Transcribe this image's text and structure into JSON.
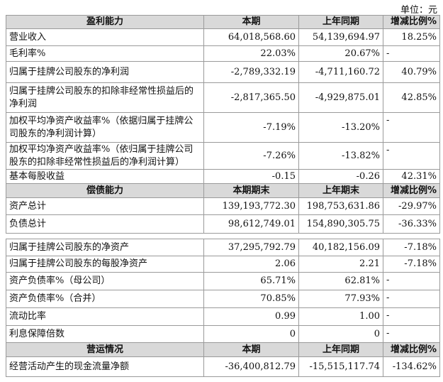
{
  "unit": "单位：元",
  "tables": [
    {
      "rows": [
        {
          "heading": [
            "盈利能力",
            "本期",
            "上年同期",
            "增减比例%"
          ]
        },
        {
          "cells": [
            "营业收入",
            "64,018,568.60",
            "54,139,694.97",
            "18.25%"
          ]
        },
        {
          "cells": [
            "毛利率%",
            "22.03%",
            "20.67%",
            "-"
          ]
        },
        {
          "cells": [
            "归属于挂牌公司股东的净利润",
            "-2,789,332.19",
            "-4,711,160.72",
            "40.79%"
          ]
        },
        {
          "cells": [
            "归属于挂牌公司股东的扣除非经常性损益后的净利润",
            "-2,817,365.50",
            "-4,929,875.01",
            "42.85%"
          ]
        },
        {
          "cells": [
            "加权平均净资产收益率%（依据归属于挂牌公司股东的净利润计算）",
            "-7.19%",
            "-13.20%",
            "-"
          ]
        },
        {
          "cells": [
            "加权平均净资产收益率%（依归属于挂牌公司股东的扣除非经常性损益后的净利润计算）",
            "-7.26%",
            "-13.82%",
            "-"
          ]
        },
        {
          "cells": [
            "基本每股收益",
            "-0.15",
            "-0.26",
            "42.31%"
          ]
        },
        {
          "heading": [
            "偿债能力",
            "本期期末",
            "上年期末",
            "增减比例%"
          ]
        },
        {
          "cells": [
            "资产总计",
            "139,193,772.30",
            "198,753,631.86",
            "-29.97%"
          ]
        },
        {
          "cells": [
            "负债总计",
            "98,612,749.01",
            "154,890,305.75",
            "-36.33%"
          ]
        }
      ]
    },
    {
      "rows": [
        {
          "cells": [
            "归属于挂牌公司股东的净资产",
            "37,295,792.79",
            "40,182,156.09",
            "-7.18%"
          ]
        },
        {
          "cells": [
            "归属于挂牌公司股东的每股净资产",
            "2.06",
            "2.21",
            "-7.18%"
          ]
        },
        {
          "cells": [
            "资产负债率%（母公司）",
            "65.71%",
            "62.81%",
            "-"
          ]
        },
        {
          "cells": [
            "资产负债率%（合并）",
            "70.85%",
            "77.93%",
            "-"
          ]
        },
        {
          "cells": [
            "流动比率",
            "0.99",
            "1.00",
            "-"
          ]
        },
        {
          "cells": [
            "利息保障倍数",
            "0",
            "0",
            "-"
          ]
        },
        {
          "heading": [
            "营运情况",
            "本期",
            "上年同期",
            "增减比例%"
          ]
        },
        {
          "cells": [
            "经营活动产生的现金流量净额",
            "-36,400,812.79",
            "-15,515,117.74",
            "-134.62%"
          ]
        }
      ]
    }
  ]
}
